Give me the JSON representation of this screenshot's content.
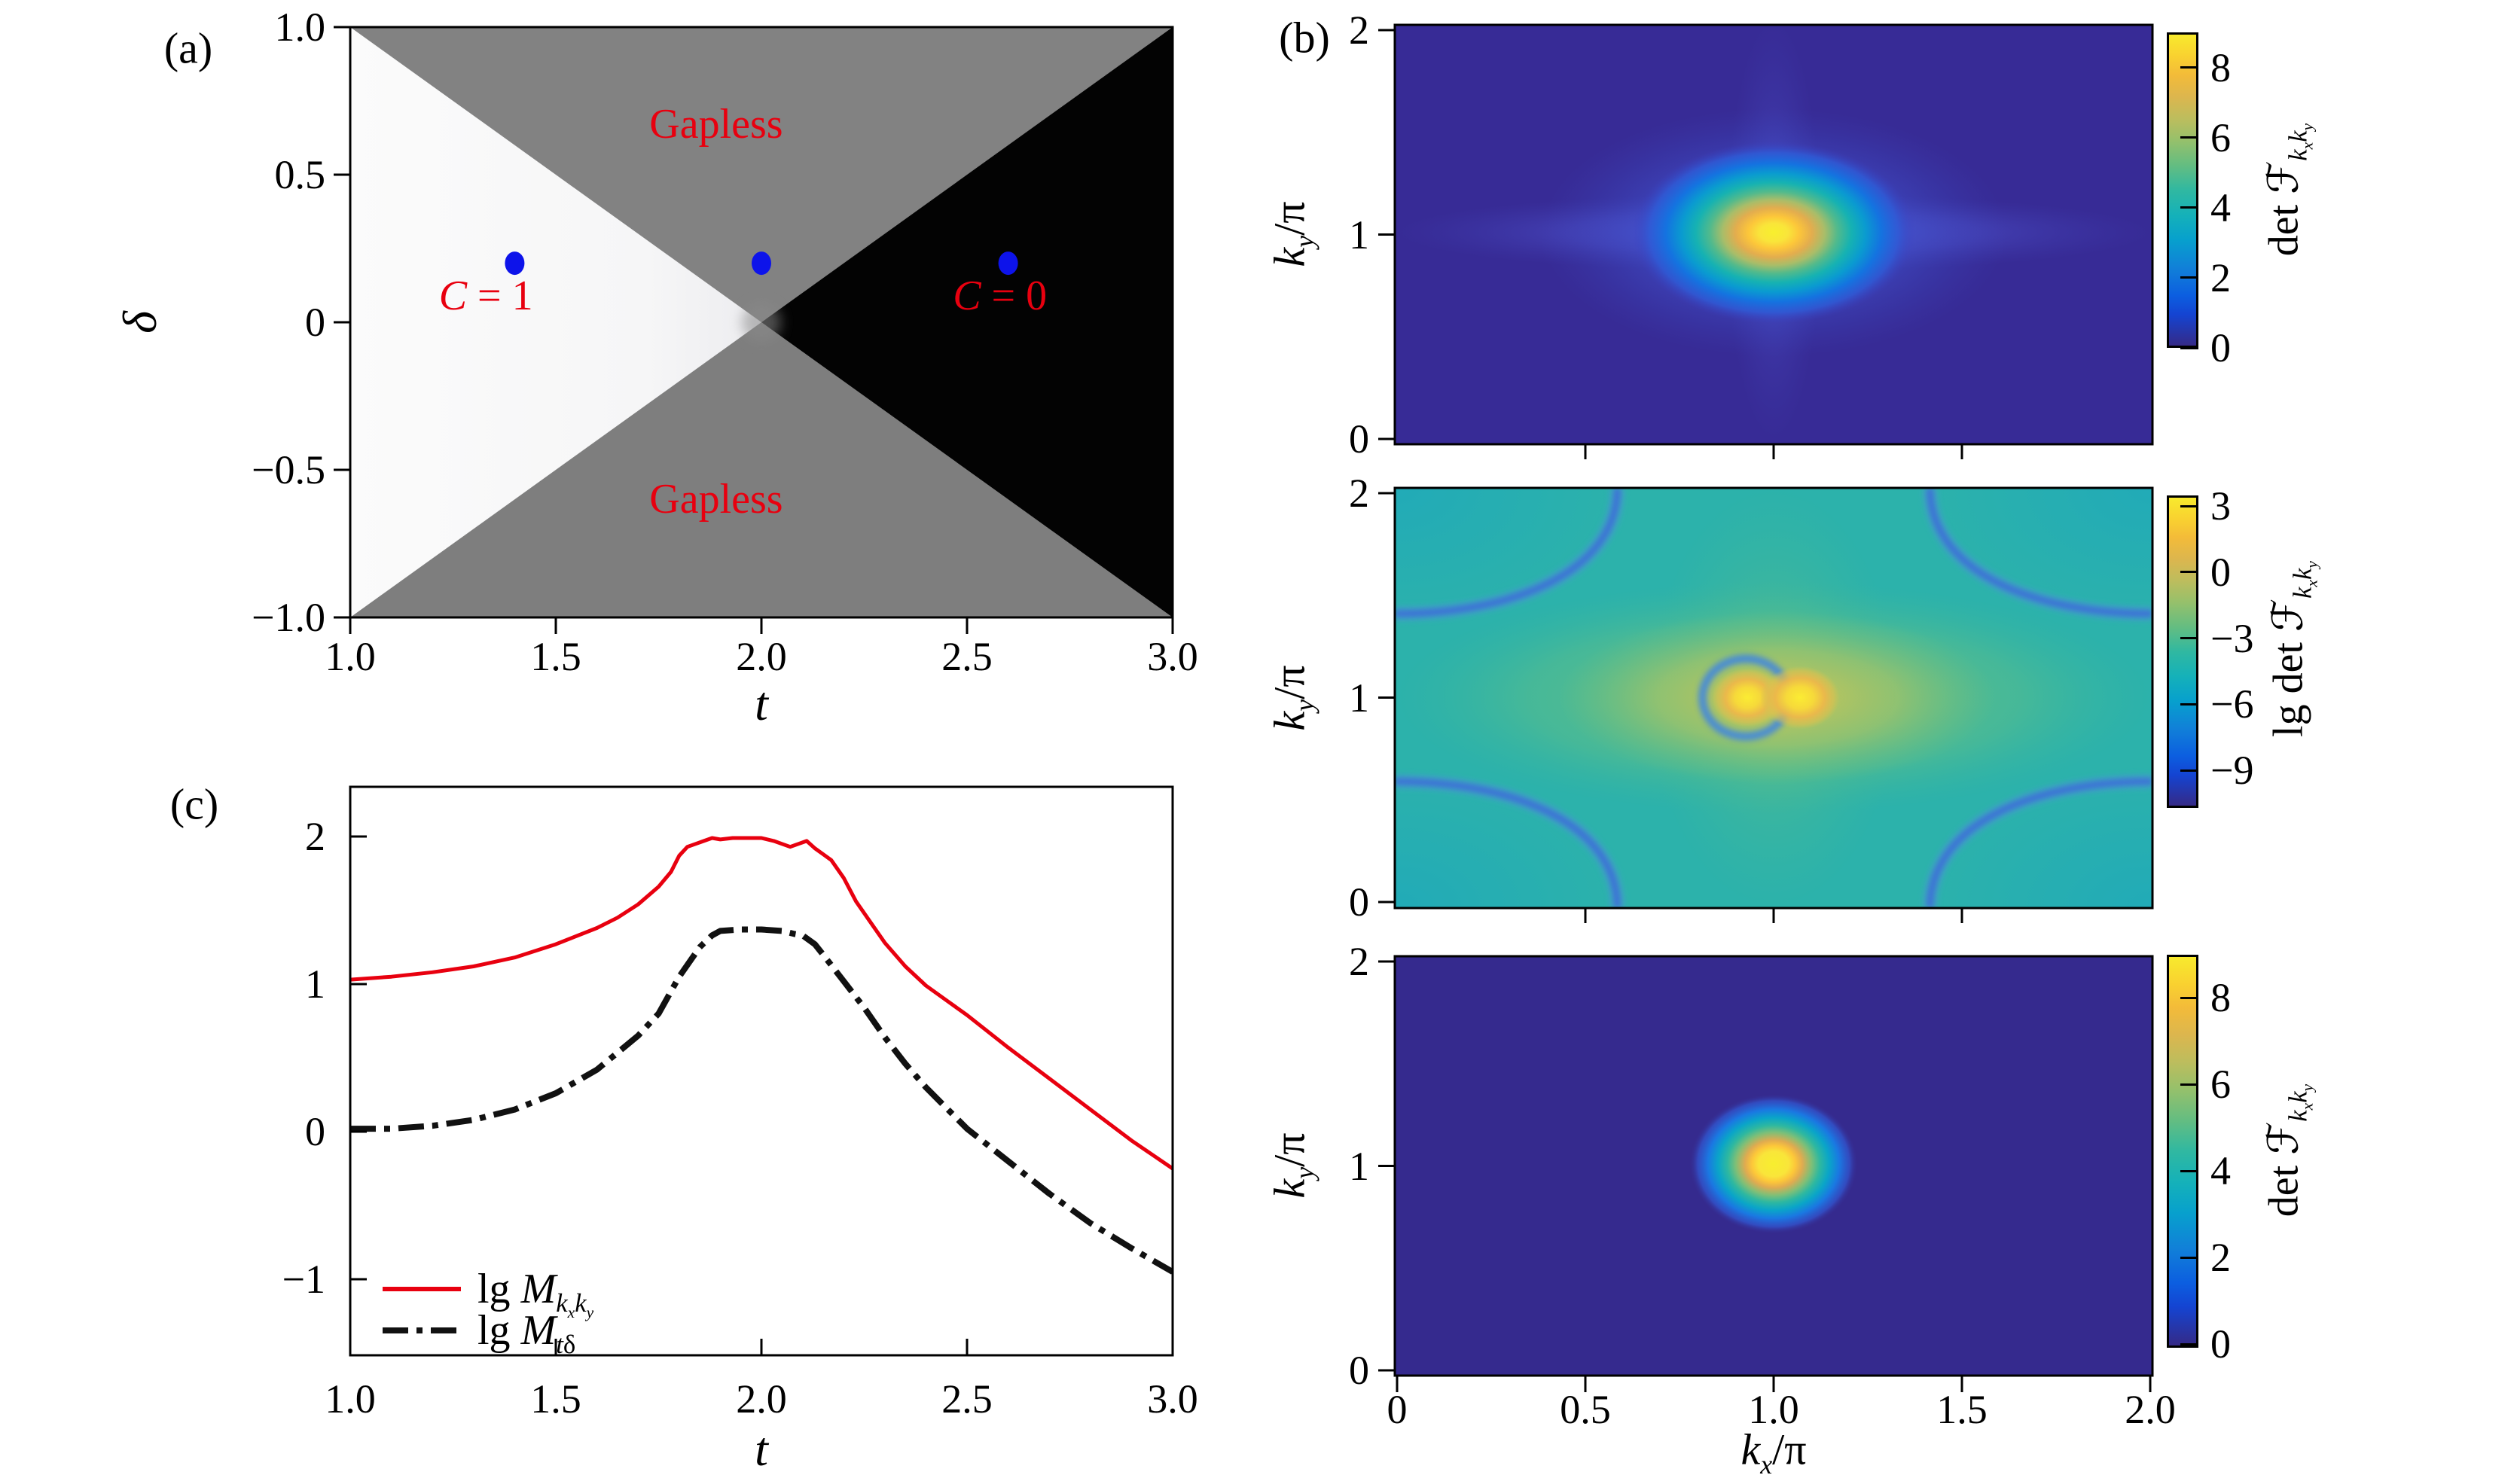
{
  "figure": {
    "background": "#ffffff",
    "accent_red": "#e8000f",
    "marker_blue": "#0d13ea",
    "colormap": "parula"
  },
  "chart_data": [
    {
      "id": "panel-a",
      "panel_label": "(a)",
      "type": "heatmap",
      "subtype": "phase-diagram",
      "xlabel_html": "<i>t</i>",
      "ylabel_html": "δ",
      "xlim": [
        1.0,
        3.0
      ],
      "ylim": [
        -1.0,
        1.0
      ],
      "xticks": [
        {
          "v": 1.0,
          "t": "1.0"
        },
        {
          "v": 1.5,
          "t": "1.5"
        },
        {
          "v": 2.0,
          "t": "2.0"
        },
        {
          "v": 2.5,
          "t": "2.5"
        },
        {
          "v": 3.0,
          "t": "3.0"
        }
      ],
      "yticks": [
        {
          "v": 1.0,
          "t": "1.0"
        },
        {
          "v": 0.5,
          "t": "0.5"
        },
        {
          "v": 0.0,
          "t": "0"
        },
        {
          "v": -0.5,
          "t": "−0.5"
        },
        {
          "v": -1.0,
          "t": "−1.0"
        }
      ],
      "regions": [
        {
          "name": "C1",
          "color": "#f7f7f7",
          "gradient": true,
          "polygon": [
            [
              1,
              1
            ],
            [
              1,
              -1
            ],
            [
              2,
              0
            ]
          ]
        },
        {
          "name": "gapless-top",
          "color": "#828282",
          "polygon": [
            [
              1,
              1
            ],
            [
              3,
              1
            ],
            [
              2,
              0
            ]
          ]
        },
        {
          "name": "gapless-bottom",
          "color": "#7e7e7e",
          "polygon": [
            [
              1,
              -1
            ],
            [
              3,
              -1
            ],
            [
              2,
              0
            ]
          ]
        },
        {
          "name": "C0",
          "color": "#030303",
          "polygon": [
            [
              3,
              1
            ],
            [
              3,
              -1
            ],
            [
              2,
              0
            ]
          ]
        }
      ],
      "annotations": [
        {
          "html": "Gapless",
          "t": 1.89,
          "d": 0.67
        },
        {
          "html": "Gapless",
          "t": 1.89,
          "d": -0.6
        },
        {
          "html": "<i>C</i> = 1",
          "t": 1.33,
          "d": 0.09
        },
        {
          "html": "<i>C</i> = 0",
          "t": 2.58,
          "d": 0.09
        }
      ],
      "annotation_color": "#e8000f",
      "points": {
        "color": "#0d13ea",
        "coords": [
          [
            1.4,
            0.2
          ],
          [
            2.0,
            0.2
          ],
          [
            2.6,
            0.2
          ]
        ]
      }
    },
    {
      "id": "panel-b-top",
      "panel_label": "(b)",
      "type": "heatmap",
      "ylabel_html": "<i>k<sub>y</sub></i>/π",
      "xlim": [
        0,
        2
      ],
      "ylim": [
        0,
        2
      ],
      "yticks": [
        {
          "v": 2,
          "t": "2"
        },
        {
          "v": 1,
          "t": "1"
        },
        {
          "v": 0,
          "t": "0"
        }
      ],
      "minor_xticks": [
        0.5,
        1.0,
        1.5
      ],
      "background_value": 0,
      "peaks": [
        {
          "kx": 1.0,
          "ky": 1.01,
          "value": 9,
          "shape": "broad ellipse with horizontal band and cross glow"
        }
      ],
      "colorbar": {
        "label_html": "det ℱ<sub><i>k<sub>x</sub></i><i>k<sub>y</sub></i></sub>",
        "range": [
          0,
          9
        ],
        "ticks": [
          {
            "v": 8,
            "t": "8"
          },
          {
            "v": 6,
            "t": "6"
          },
          {
            "v": 4,
            "t": "4"
          },
          {
            "v": 2,
            "t": "2"
          },
          {
            "v": 0,
            "t": "0"
          }
        ]
      }
    },
    {
      "id": "panel-b-middle",
      "type": "heatmap",
      "ylabel_html": "<i>k<sub>y</sub></i>/π",
      "xlim": [
        0,
        2
      ],
      "ylim": [
        0,
        2
      ],
      "yticks": [
        {
          "v": 2,
          "t": "2"
        },
        {
          "v": 1,
          "t": "1"
        },
        {
          "v": 0,
          "t": "0"
        }
      ],
      "minor_xticks": [
        0.5,
        1.0,
        1.5
      ],
      "background_value": -3.5,
      "peaks": [
        {
          "kx": 0.93,
          "ky": 1.0,
          "value": 3
        },
        {
          "kx": 1.07,
          "ky": 1.0,
          "value": 3
        }
      ],
      "ring": {
        "kx": 0.926,
        "ky": 1.0,
        "rx": 0.115,
        "ry": 0.19,
        "value": -6
      },
      "contours": {
        "h": [
          1.41,
          0.59
        ],
        "v": [
          0.585,
          1.415
        ],
        "value": -8
      },
      "colorbar": {
        "label_html": "lg det ℱ<sub><i>k<sub>x</sub></i><i>k<sub>y</sub></i></sub>",
        "range": [
          -10.7,
          3.5
        ],
        "ticks": [
          {
            "v": 3,
            "t": "3"
          },
          {
            "v": 0,
            "t": "0"
          },
          {
            "v": -3,
            "t": "−3"
          },
          {
            "v": -6,
            "t": "−6"
          },
          {
            "v": -9,
            "t": "−9"
          }
        ]
      }
    },
    {
      "id": "panel-b-bottom",
      "type": "heatmap",
      "xlabel_html": "<i>k<sub>x</sub></i>/π",
      "ylabel_html": "<i>k<sub>y</sub></i>/π",
      "xlim": [
        0,
        2
      ],
      "ylim": [
        0,
        2
      ],
      "xticks": [
        {
          "v": 0,
          "t": "0"
        },
        {
          "v": 0.5,
          "t": "0.5"
        },
        {
          "v": 1.0,
          "t": "1.0"
        },
        {
          "v": 1.5,
          "t": "1.5"
        },
        {
          "v": 2.0,
          "t": "2.0"
        }
      ],
      "yticks": [
        {
          "v": 2,
          "t": "2"
        },
        {
          "v": 1,
          "t": "1"
        },
        {
          "v": 0,
          "t": "0"
        }
      ],
      "background_value": 0,
      "peaks": [
        {
          "kx": 1.0,
          "ky": 1.01,
          "value": 9,
          "shape": "small compact spot"
        }
      ],
      "colorbar": {
        "label_html": "det ℱ<sub><i>k<sub>x</sub></i><i>k<sub>y</sub></i></sub>",
        "range": [
          0,
          9
        ],
        "ticks": [
          {
            "v": 8,
            "t": "8"
          },
          {
            "v": 6,
            "t": "6"
          },
          {
            "v": 4,
            "t": "4"
          },
          {
            "v": 2,
            "t": "2"
          },
          {
            "v": 0,
            "t": "0"
          }
        ]
      }
    },
    {
      "id": "panel-c",
      "panel_label": "(c)",
      "type": "line",
      "xlabel_html": "<i>t</i>",
      "xlim": [
        1.0,
        3.0
      ],
      "ylim": [
        -1.52,
        2.34
      ],
      "xticks": [
        {
          "v": 1.0,
          "t": "1.0"
        },
        {
          "v": 1.5,
          "t": "1.5"
        },
        {
          "v": 2.0,
          "t": "2.0"
        },
        {
          "v": 2.5,
          "t": "2.5"
        },
        {
          "v": 3.0,
          "t": "3.0"
        }
      ],
      "yticks": [
        {
          "v": 2,
          "t": "2"
        },
        {
          "v": 1,
          "t": "1"
        },
        {
          "v": 0,
          "t": "0"
        },
        {
          "v": -1,
          "t": "−1"
        }
      ],
      "legend_position": "lower left",
      "series": [
        {
          "name": "lg M_kxky",
          "label_html": "lg <i>M</i><sub><i>k<sub>x</sub></i><i>k<sub>y</sub></i></sub>",
          "color": "#e8000f",
          "style": "solid",
          "width": 5,
          "x": [
            1.0,
            1.1,
            1.2,
            1.3,
            1.4,
            1.5,
            1.6,
            1.65,
            1.7,
            1.75,
            1.78,
            1.8,
            1.82,
            1.84,
            1.86,
            1.88,
            1.9,
            1.93,
            1.96,
            2.0,
            2.03,
            2.05,
            2.07,
            2.09,
            2.11,
            2.13,
            2.15,
            2.17,
            2.2,
            2.23,
            2.26,
            2.3,
            2.35,
            2.4,
            2.45,
            2.5,
            2.6,
            2.7,
            2.8,
            2.9,
            3.0
          ],
          "y": [
            1.03,
            1.05,
            1.08,
            1.12,
            1.18,
            1.27,
            1.38,
            1.45,
            1.54,
            1.66,
            1.76,
            1.87,
            1.93,
            1.95,
            1.97,
            1.99,
            1.98,
            1.99,
            1.99,
            1.99,
            1.97,
            1.95,
            1.93,
            1.95,
            1.97,
            1.92,
            1.88,
            1.84,
            1.72,
            1.56,
            1.44,
            1.28,
            1.12,
            0.99,
            0.89,
            0.79,
            0.57,
            0.36,
            0.15,
            -0.06,
            -0.25
          ]
        },
        {
          "name": "lg M_tdelta",
          "label_html": "lg <i>M</i><sub><i>t</i>δ</sub>",
          "color": "#111111",
          "style": "dashdot",
          "width": 8,
          "x": [
            1.0,
            1.1,
            1.2,
            1.3,
            1.4,
            1.5,
            1.6,
            1.7,
            1.75,
            1.8,
            1.85,
            1.88,
            1.9,
            1.95,
            2.0,
            2.05,
            2.08,
            2.1,
            2.13,
            2.15,
            2.2,
            2.25,
            2.3,
            2.35,
            2.4,
            2.5,
            2.6,
            2.7,
            2.8,
            2.9,
            3.0
          ],
          "y": [
            0.02,
            0.02,
            0.04,
            0.08,
            0.15,
            0.26,
            0.42,
            0.65,
            0.8,
            1.05,
            1.25,
            1.33,
            1.36,
            1.37,
            1.37,
            1.36,
            1.34,
            1.33,
            1.27,
            1.2,
            1.02,
            0.84,
            0.64,
            0.46,
            0.3,
            0.02,
            -0.2,
            -0.42,
            -0.62,
            -0.79,
            -0.95
          ]
        }
      ]
    }
  ]
}
